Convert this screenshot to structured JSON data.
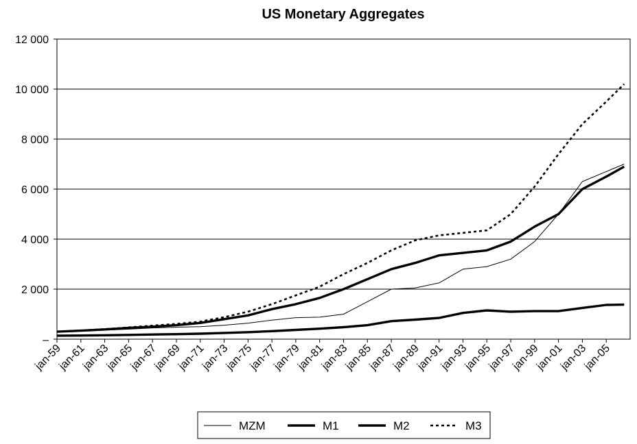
{
  "chart_data": {
    "type": "line",
    "title": "US Monetary Aggregates",
    "xlabel": "",
    "ylabel": "",
    "ylim": [
      0,
      12000
    ],
    "y_ticks": [
      "–",
      "2 000",
      "4 000",
      "6 000",
      "8 000",
      "10 000",
      "12 000"
    ],
    "x_ticks": [
      "jan-59",
      "jan-61",
      "jan-63",
      "jan-65",
      "jan-67",
      "jan-69",
      "jan-71",
      "jan-73",
      "jan-75",
      "jan-77",
      "jan-79",
      "jan-81",
      "jan-83",
      "jan-85",
      "jan-87",
      "jan-89",
      "jan-91",
      "jan-93",
      "jan-95",
      "jan-97",
      "jan-99",
      "jan-01",
      "jan-03",
      "jan-05"
    ],
    "grid": "horizontal",
    "legend": "bottom",
    "x": [
      1959,
      1961,
      1963,
      1965,
      1967,
      1969,
      1971,
      1973,
      1975,
      1977,
      1979,
      1981,
      1983,
      1985,
      1987,
      1989,
      1991,
      1993,
      1995,
      1997,
      1999,
      2001,
      2003,
      2005,
      2006.5
    ],
    "series": [
      {
        "name": "MZM",
        "style": "thin",
        "values": [
          300,
          330,
          360,
          400,
          450,
          480,
          500,
          560,
          640,
          760,
          860,
          880,
          1000,
          1500,
          2000,
          2050,
          2250,
          2800,
          2900,
          3200,
          3900,
          5000,
          6300,
          6700,
          7000
        ]
      },
      {
        "name": "M1",
        "style": "thick",
        "values": [
          140,
          145,
          155,
          170,
          185,
          200,
          220,
          250,
          280,
          320,
          370,
          420,
          480,
          560,
          720,
          780,
          850,
          1050,
          1150,
          1100,
          1120,
          1120,
          1250,
          1370,
          1380
        ]
      },
      {
        "name": "M2",
        "style": "thick",
        "values": [
          300,
          340,
          390,
          450,
          500,
          560,
          650,
          800,
          950,
          1200,
          1400,
          1650,
          2000,
          2400,
          2800,
          3050,
          3350,
          3450,
          3550,
          3900,
          4500,
          5000,
          6000,
          6500,
          6900
        ]
      },
      {
        "name": "M3",
        "style": "dotted",
        "values": [
          300,
          345,
          400,
          470,
          540,
          610,
          700,
          880,
          1100,
          1400,
          1750,
          2100,
          2600,
          3050,
          3550,
          3950,
          4150,
          4250,
          4350,
          5000,
          6100,
          7400,
          8600,
          9500,
          10200
        ]
      }
    ]
  }
}
